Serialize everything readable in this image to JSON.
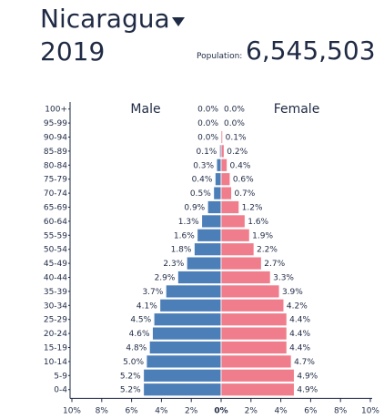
{
  "header": {
    "country": "Nicaragua",
    "country_icon": "caret-down-icon",
    "year": "2019",
    "population_label": "Population:",
    "population_value": "6,545,503"
  },
  "chart_data": {
    "type": "bar",
    "subtype": "population-pyramid",
    "left_label": "Male",
    "right_label": "Female",
    "categories": [
      "100+",
      "95-99",
      "90-94",
      "85-89",
      "80-84",
      "75-79",
      "70-74",
      "65-69",
      "60-64",
      "55-59",
      "50-54",
      "45-49",
      "40-44",
      "35-39",
      "30-34",
      "25-29",
      "20-24",
      "15-19",
      "10-14",
      "5-9",
      "0-4"
    ],
    "series": [
      {
        "name": "Male",
        "color": "#4c7fb8",
        "values": [
          0.0,
          0.0,
          0.0,
          0.1,
          0.3,
          0.4,
          0.5,
          0.9,
          1.3,
          1.6,
          1.8,
          2.3,
          2.9,
          3.7,
          4.1,
          4.5,
          4.6,
          4.8,
          5.0,
          5.2,
          5.2
        ],
        "labels": [
          "0.0%",
          "0.0%",
          "0.0%",
          "0.1%",
          "0.3%",
          "0.4%",
          "0.5%",
          "0.9%",
          "1.3%",
          "1.6%",
          "1.8%",
          "2.3%",
          "2.9%",
          "3.7%",
          "4.1%",
          "4.5%",
          "4.6%",
          "4.8%",
          "5.0%",
          "5.2%",
          "5.2%"
        ]
      },
      {
        "name": "Female",
        "color": "#f07d8c",
        "values": [
          0.0,
          0.0,
          0.1,
          0.2,
          0.4,
          0.6,
          0.7,
          1.2,
          1.6,
          1.9,
          2.2,
          2.7,
          3.3,
          3.9,
          4.2,
          4.4,
          4.4,
          4.4,
          4.7,
          4.9,
          4.9
        ],
        "labels": [
          "0.0%",
          "0.0%",
          "0.1%",
          "0.2%",
          "0.4%",
          "0.6%",
          "0.7%",
          "1.2%",
          "1.6%",
          "1.9%",
          "2.2%",
          "2.7%",
          "3.3%",
          "3.9%",
          "4.2%",
          "4.4%",
          "4.4%",
          "4.4%",
          "4.7%",
          "4.9%",
          "4.9%"
        ]
      }
    ],
    "xlim": [
      -10,
      10
    ],
    "xticks": [
      "10%",
      "8%",
      "6%",
      "4%",
      "2%",
      "0%",
      "2%",
      "4%",
      "6%",
      "8%",
      "10%"
    ],
    "grid": false
  }
}
